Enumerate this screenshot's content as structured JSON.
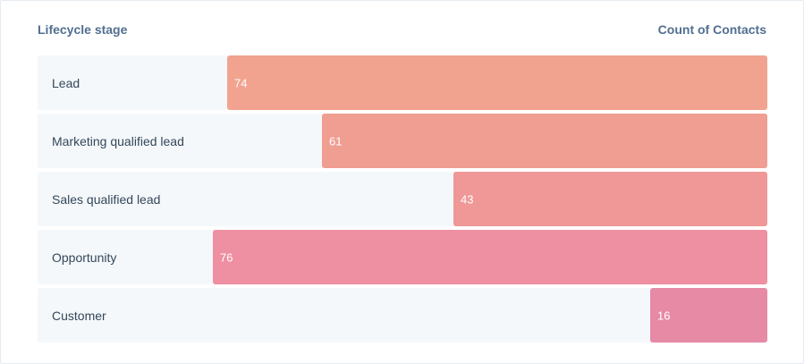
{
  "header": {
    "left_label": "Lifecycle stage",
    "right_label": "Count of Contacts"
  },
  "chart_data": {
    "type": "bar",
    "orientation": "horizontal",
    "xlabel": "Count of Contacts",
    "ylabel": "Lifecycle stage",
    "xlim": [
      0,
      100
    ],
    "categories": [
      "Lead",
      "Marketing qualified lead",
      "Sales qualified lead",
      "Opportunity",
      "Customer"
    ],
    "values": [
      74,
      61,
      43,
      76,
      16
    ],
    "colors": [
      "#f2a38f",
      "#f09d92",
      "#ef9897",
      "#ee8fa2",
      "#e68aa6"
    ],
    "grid": false
  }
}
